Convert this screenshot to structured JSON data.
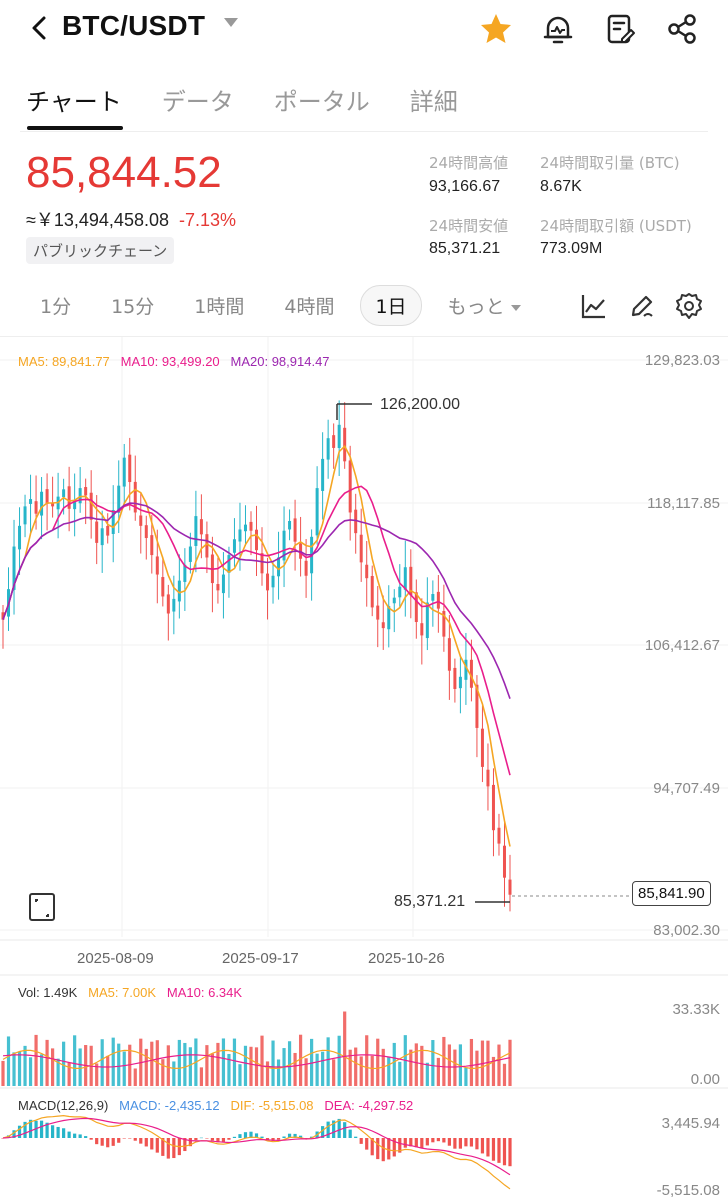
{
  "header": {
    "title": "BTC/USDT"
  },
  "tabs": [
    {
      "label": "チャート",
      "active": true
    },
    {
      "label": "データ",
      "active": false
    },
    {
      "label": "ポータル",
      "active": false
    },
    {
      "label": "詳細",
      "active": false
    }
  ],
  "price": {
    "last": "85,844.52",
    "approx": "≈￥13,494,458.08",
    "change": "-7.13%",
    "chain_badge": "パブリックチェーン"
  },
  "stats": {
    "high_label": "24時間高値",
    "high_value": "93,166.67",
    "low_label": "24時間安値",
    "low_value": "85,371.21",
    "vol_btc_label": "24時間取引量 (BTC)",
    "vol_btc_value": "8.67K",
    "vol_usdt_label": "24時間取引額 (USDT)",
    "vol_usdt_value": "773.09M"
  },
  "intervals": [
    {
      "label": "1分",
      "active": false
    },
    {
      "label": "15分",
      "active": false
    },
    {
      "label": "1時間",
      "active": false
    },
    {
      "label": "4時間",
      "active": false
    },
    {
      "label": "1日",
      "active": true
    }
  ],
  "more_label": "もっと",
  "colors": {
    "up": "#26b5c9",
    "down": "#ef5350",
    "ma5": "#f5a623",
    "ma10": "#e91e8c",
    "ma20": "#9c27b0",
    "accent_star": "#f5a623",
    "dif": "#f5a623",
    "dea": "#e91e8c",
    "macd_text": "#4a90e2"
  },
  "icons": [
    "back-arrow-icon",
    "star-icon",
    "price-alert-icon",
    "note-edit-icon",
    "share-icon",
    "indicator-icon",
    "draw-tool-icon",
    "settings-gear-icon",
    "fullscreen-icon"
  ],
  "ma_legend": {
    "ma5": "MA5: 89,841.77",
    "ma10": "MA10: 93,499.20",
    "ma20": "MA20: 98,914.47"
  },
  "vol_legend": {
    "vol": "Vol: 1.49K",
    "ma5": "MA5: 7.00K",
    "ma10": "MA10: 6.34K"
  },
  "macd_legend": {
    "name": "MACD(12,26,9)",
    "macd": "MACD: -2,435.12",
    "dif": "DIF: -5,515.08",
    "dea": "DEA: -4,297.52"
  },
  "chart_data": {
    "type": "candlestick",
    "price_axis": [
      "129,823.03",
      "118,117.85",
      "106,412.67",
      "94,707.49",
      "83,002.30"
    ],
    "ylim": [
      83002.3,
      129823.03
    ],
    "x_tick_labels": [
      "2025-08-09",
      "2025-09-17",
      "2025-10-26"
    ],
    "high_annotation": "126,200.00",
    "low_annotation": "85,371.21",
    "current_price_tag": "85,841.90",
    "close_series": [
      108500,
      111000,
      114500,
      116200,
      117800,
      118400,
      117200,
      119000,
      118000,
      117800,
      118600,
      119200,
      117600,
      118300,
      119300,
      118700,
      116700,
      114800,
      116000,
      115400,
      117500,
      119500,
      121800,
      119800,
      117300,
      116200,
      115200,
      113800,
      112200,
      110400,
      109000,
      110200,
      111700,
      113000,
      114500,
      117000,
      115500,
      113600,
      111500,
      110900,
      112200,
      113800,
      115100,
      115900,
      116300,
      115800,
      114200,
      112300,
      110900,
      112100,
      113600,
      115800,
      116600,
      114900,
      113500,
      112100,
      115300,
      119300,
      121700,
      123400,
      122600,
      124500,
      121500,
      117300,
      115600,
      113200,
      111900,
      109500,
      108500,
      107800,
      109600,
      110300,
      111200,
      112800,
      110500,
      108300,
      107200,
      109900,
      110600,
      109400,
      107100,
      104300,
      102800,
      103800,
      105200,
      102900,
      99600,
      96400,
      94800,
      91200,
      90100,
      87300,
      85900
    ],
    "volume_axis": [
      "33.33K",
      "0.00"
    ],
    "macd_axis": [
      "3,445.94",
      "-5,515.08"
    ]
  }
}
